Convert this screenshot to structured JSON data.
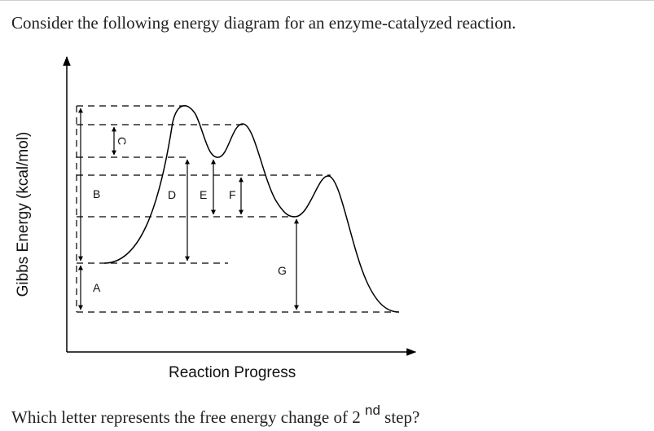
{
  "question": {
    "intro": "Consider the following energy diagram for an enzyme-catalyzed reaction.",
    "prompt_prefix": "Which letter represents the free energy change of 2",
    "prompt_sup": "nd",
    "prompt_suffix": " step?"
  },
  "diagram": {
    "y_axis_label": "Gibbs Energy (kcal/mol)",
    "x_axis_label": "Reaction Progress",
    "labels": {
      "A": "A",
      "B": "B",
      "C": "C",
      "D": "D",
      "E": "E",
      "F": "F",
      "G": "G"
    },
    "line_color": "#000000"
  }
}
